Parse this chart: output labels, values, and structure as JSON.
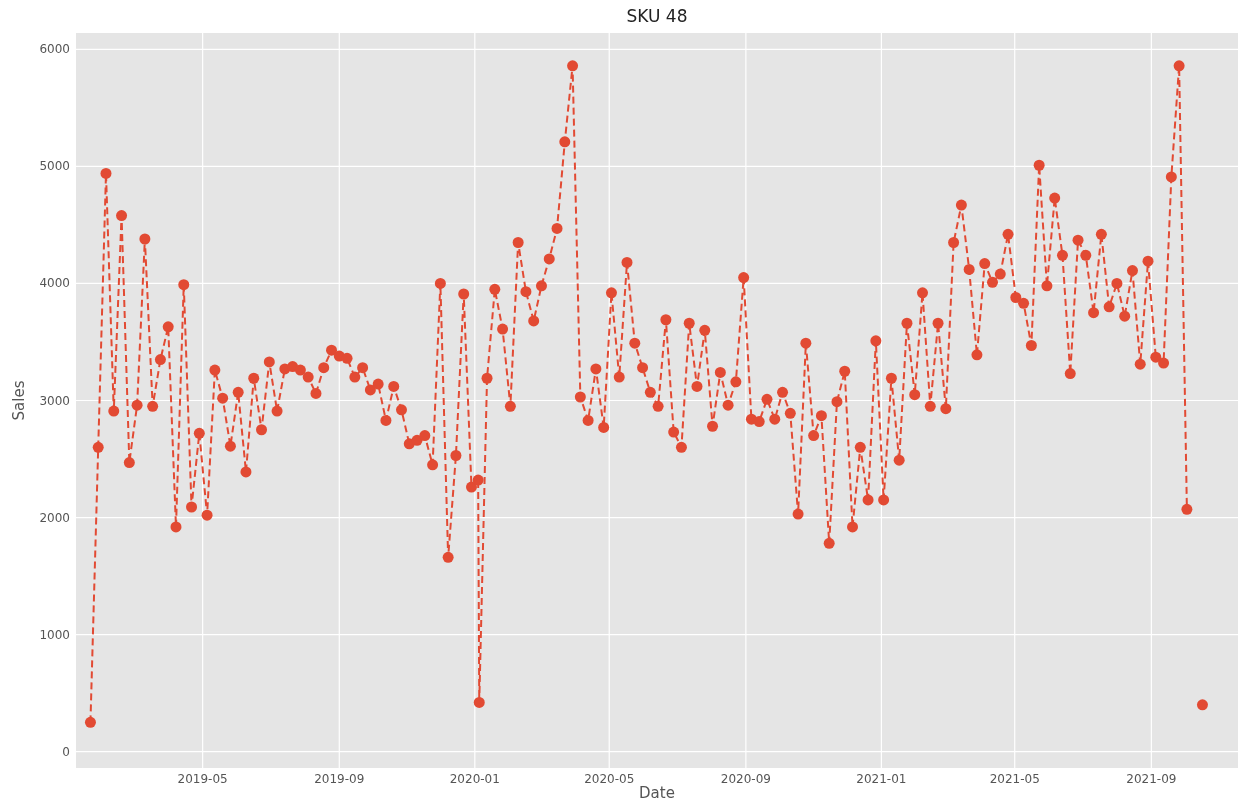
{
  "chart_data": {
    "type": "line",
    "title": "SKU 48",
    "xlabel": "Date",
    "ylabel": "Sales",
    "x": [
      "2019-01-20",
      "2019-01-27",
      "2019-02-03",
      "2019-02-10",
      "2019-02-17",
      "2019-02-24",
      "2019-03-03",
      "2019-03-10",
      "2019-03-17",
      "2019-03-24",
      "2019-03-31",
      "2019-04-07",
      "2019-04-14",
      "2019-04-21",
      "2019-04-28",
      "2019-05-05",
      "2019-05-12",
      "2019-05-19",
      "2019-05-26",
      "2019-06-02",
      "2019-06-09",
      "2019-06-16",
      "2019-06-23",
      "2019-06-30",
      "2019-07-07",
      "2019-07-14",
      "2019-07-21",
      "2019-07-28",
      "2019-08-04",
      "2019-08-11",
      "2019-08-18",
      "2019-08-25",
      "2019-09-01",
      "2019-09-08",
      "2019-09-15",
      "2019-09-22",
      "2019-09-29",
      "2019-10-06",
      "2019-10-13",
      "2019-10-20",
      "2019-10-27",
      "2019-11-03",
      "2019-11-10",
      "2019-11-17",
      "2019-11-24",
      "2019-12-01",
      "2019-12-08",
      "2019-12-15",
      "2019-12-22",
      "2019-12-29",
      "2020-01-04",
      "2020-01-05",
      "2020-01-12",
      "2020-01-19",
      "2020-01-26",
      "2020-02-02",
      "2020-02-09",
      "2020-02-16",
      "2020-02-23",
      "2020-03-01",
      "2020-03-08",
      "2020-03-15",
      "2020-03-22",
      "2020-03-29",
      "2020-04-05",
      "2020-04-12",
      "2020-04-19",
      "2020-04-26",
      "2020-05-03",
      "2020-05-10",
      "2020-05-17",
      "2020-05-24",
      "2020-05-31",
      "2020-06-07",
      "2020-06-14",
      "2020-06-21",
      "2020-06-28",
      "2020-07-05",
      "2020-07-12",
      "2020-07-19",
      "2020-07-26",
      "2020-08-02",
      "2020-08-09",
      "2020-08-16",
      "2020-08-23",
      "2020-08-30",
      "2020-09-06",
      "2020-09-13",
      "2020-09-20",
      "2020-09-27",
      "2020-10-04",
      "2020-10-11",
      "2020-10-18",
      "2020-10-25",
      "2020-11-01",
      "2020-11-08",
      "2020-11-15",
      "2020-11-22",
      "2020-11-29",
      "2020-12-06",
      "2020-12-13",
      "2020-12-20",
      "2020-12-27",
      "2021-01-03",
      "2021-01-10",
      "2021-01-17",
      "2021-01-24",
      "2021-01-31",
      "2021-02-07",
      "2021-02-14",
      "2021-02-21",
      "2021-02-28",
      "2021-03-07",
      "2021-03-14",
      "2021-03-21",
      "2021-03-28",
      "2021-04-04",
      "2021-04-11",
      "2021-04-18",
      "2021-04-25",
      "2021-05-02",
      "2021-05-09",
      "2021-05-16",
      "2021-05-23",
      "2021-05-30",
      "2021-06-06",
      "2021-06-13",
      "2021-06-20",
      "2021-06-27",
      "2021-07-04",
      "2021-07-11",
      "2021-07-18",
      "2021-07-25",
      "2021-08-01",
      "2021-08-08",
      "2021-08-15",
      "2021-08-22",
      "2021-08-29",
      "2021-09-05",
      "2021-09-12",
      "2021-09-19",
      "2021-09-26",
      "2021-10-03",
      "2021-10-10",
      "2021-10-17"
    ],
    "series": [
      {
        "color": "#e24a33",
        "values": [
          250,
          2600,
          4940,
          2910,
          4580,
          2470,
          2960,
          4380,
          2950,
          3350,
          3630,
          1920,
          3990,
          2090,
          2720,
          2020,
          3260,
          3020,
          2610,
          3070,
          2390,
          3190,
          2750,
          3330,
          2910,
          3270,
          3290,
          3260,
          3200,
          3060,
          3280,
          3430,
          3380,
          3360,
          3200,
          3280,
          3090,
          3140,
          2830,
          3120,
          2920,
          2630,
          2660,
          2700,
          2450,
          4000,
          1660,
          2530,
          3910,
          2260,
          2320,
          420,
          3190,
          3950,
          3610,
          2950,
          4350,
          3930,
          3680,
          3980,
          4210,
          4470,
          5210,
          5860,
          3030,
          2830,
          3270,
          2770,
          3920,
          3200,
          4180,
          3490,
          3280,
          3070,
          2950,
          3690,
          2730,
          2600,
          3660,
          3120,
          3600,
          2780,
          3240,
          2960,
          3160,
          4050,
          2840,
          2820,
          3010,
          2840,
          3070,
          2890,
          2030,
          3490,
          2700,
          2870,
          1780,
          2990,
          3250,
          1920,
          2600,
          2150,
          3510,
          2150,
          3190,
          2490,
          3660,
          3050,
          3920,
          2950,
          3660,
          2930,
          4350,
          4670,
          4120,
          3390,
          4170,
          4010,
          4080,
          4420,
          3880,
          3830,
          3470,
          5010,
          3980,
          4730,
          4240,
          3230,
          4370,
          4240,
          3750,
          4420,
          3800,
          4000,
          3720,
          4110,
          3310,
          4190,
          3370,
          3320,
          4910,
          5860,
          2070,
          null,
          400
        ]
      }
    ],
    "xlim": [
      "2019-01-07",
      "2021-11-18"
    ],
    "ylim": [
      -140,
      6140
    ],
    "xticks": [
      {
        "value": "2019-05-01",
        "label": "2019-05"
      },
      {
        "value": "2019-09-01",
        "label": "2019-09"
      },
      {
        "value": "2020-01-01",
        "label": "2020-01"
      },
      {
        "value": "2020-05-01",
        "label": "2020-05"
      },
      {
        "value": "2020-09-01",
        "label": "2020-09"
      },
      {
        "value": "2021-01-01",
        "label": "2021-01"
      },
      {
        "value": "2021-05-01",
        "label": "2021-05"
      },
      {
        "value": "2021-09-01",
        "label": "2021-09"
      }
    ],
    "yticks": [
      0,
      1000,
      2000,
      3000,
      4000,
      5000,
      6000
    ],
    "grid": true,
    "marker": "circle",
    "line_style": "dashed"
  }
}
